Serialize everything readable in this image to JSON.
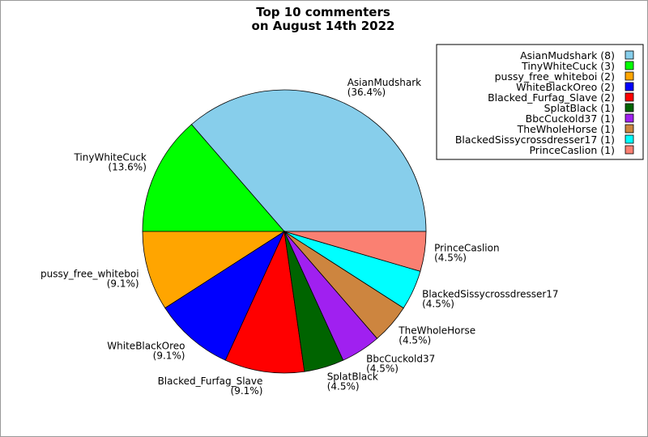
{
  "chart_data": {
    "type": "pie",
    "title_lines": [
      "Top 10 commenters",
      "on August 14th 2022"
    ],
    "legend_position": "top-right",
    "slices": [
      {
        "name": "AsianMudshark",
        "value": 8,
        "percent": "(36.4%)",
        "legend": "AsianMudshark (8)",
        "color": "#87ceeb"
      },
      {
        "name": "TinyWhiteCuck",
        "value": 3,
        "percent": "(13.6%)",
        "legend": "TinyWhiteCuck (3)",
        "color": "#00ff00"
      },
      {
        "name": "pussy_free_whiteboi",
        "value": 2,
        "percent": "(9.1%)",
        "legend": "pussy_free_whiteboi (2)",
        "color": "#ffa500"
      },
      {
        "name": "WhiteBlackOreo",
        "value": 2,
        "percent": "(9.1%)",
        "legend": "WhiteBlackOreo (2)",
        "color": "#0000ff"
      },
      {
        "name": "Blacked_Furfag_Slave",
        "value": 2,
        "percent": "(9.1%)",
        "legend": "Blacked_Furfag_Slave (2)",
        "color": "#ff0000"
      },
      {
        "name": "SplatBlack",
        "value": 1,
        "percent": "(4.5%)",
        "legend": "SplatBlack (1)",
        "color": "#006400"
      },
      {
        "name": "BbcCuckold37",
        "value": 1,
        "percent": "(4.5%)",
        "legend": "BbcCuckold37 (1)",
        "color": "#a020f0"
      },
      {
        "name": "TheWholeHorse",
        "value": 1,
        "percent": "(4.5%)",
        "legend": "TheWholeHorse (1)",
        "color": "#cd853f"
      },
      {
        "name": "BlackedSissycrossdresser17",
        "value": 1,
        "percent": "(4.5%)",
        "legend": "BlackedSissycrossdresser17 (1)",
        "color": "#00ffff"
      },
      {
        "name": "PrinceCaslion",
        "value": 1,
        "percent": "(4.5%)",
        "legend": "PrinceCaslion (1)",
        "color": "#fa8072"
      }
    ]
  }
}
